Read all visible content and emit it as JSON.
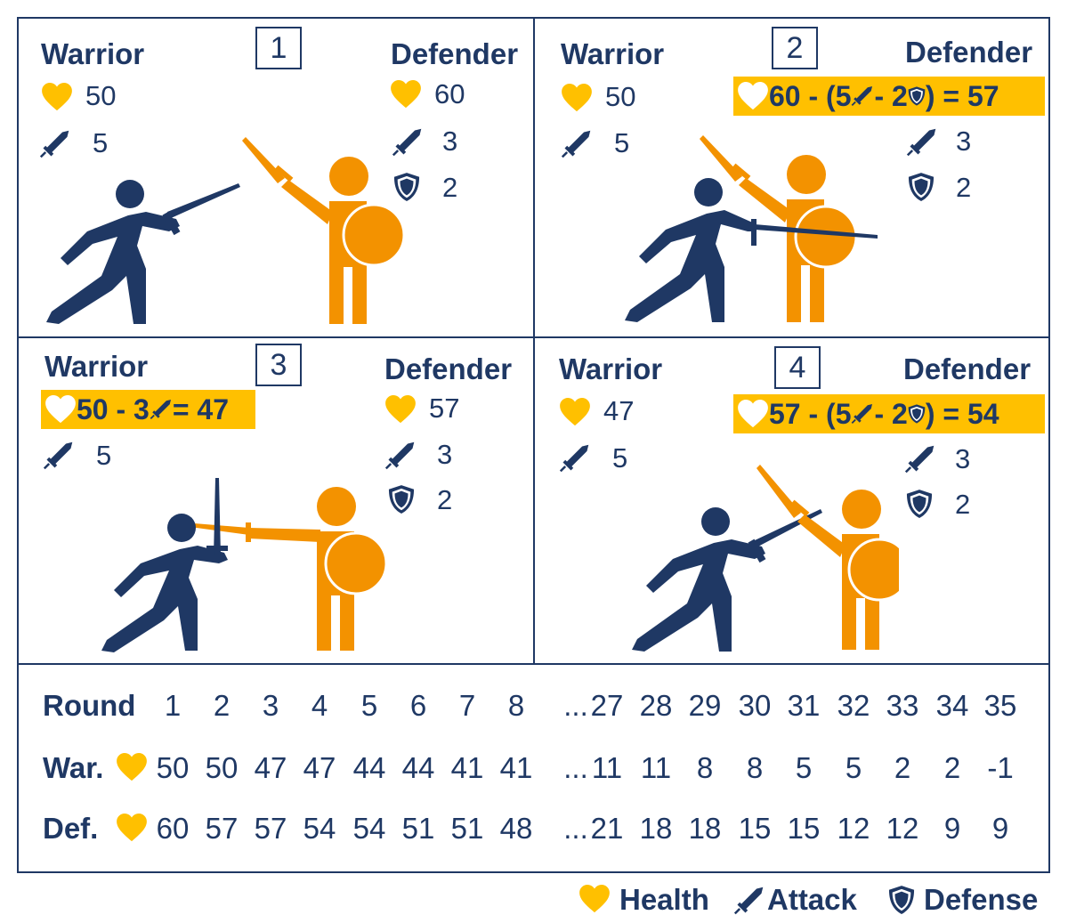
{
  "panels": [
    {
      "number": "1",
      "warrior": {
        "label": "Warrior",
        "health": "50",
        "attack": "5"
      },
      "defender": {
        "label": "Defender",
        "health": "60",
        "attack": "3",
        "defense": "2"
      }
    },
    {
      "number": "2",
      "warrior": {
        "label": "Warrior",
        "health": "50",
        "attack": "5"
      },
      "defender": {
        "label": "Defender",
        "attack": "3",
        "defense": "2",
        "health_formula": {
          "a": "60 - (5",
          "b": " - 2",
          "c": ") = 57"
        }
      }
    },
    {
      "number": "3",
      "warrior": {
        "label": "Warrior",
        "attack": "5",
        "health_formula": {
          "a": "50 - 3",
          "b": " = 47"
        }
      },
      "defender": {
        "label": "Defender",
        "health": "57",
        "attack": "3",
        "defense": "2"
      }
    },
    {
      "number": "4",
      "warrior": {
        "label": "Warrior",
        "health": "47",
        "attack": "5"
      },
      "defender": {
        "label": "Defender",
        "attack": "3",
        "defense": "2",
        "health_formula": {
          "a": "57 - (5",
          "b": " - 2",
          "c": ") = 54"
        }
      }
    }
  ],
  "table": {
    "round_label": "Round",
    "warrior_label": "War.",
    "defender_label": "Def.",
    "ellipsis": "...",
    "rounds": [
      "1",
      "2",
      "3",
      "4",
      "5",
      "6",
      "7",
      "8",
      "27",
      "28",
      "29",
      "30",
      "31",
      "32",
      "33",
      "34",
      "35"
    ],
    "warrior_health": [
      "50",
      "50",
      "47",
      "47",
      "44",
      "44",
      "41",
      "41",
      "11",
      "11",
      "8",
      "8",
      "5",
      "5",
      "2",
      "2",
      "-1"
    ],
    "defender_health": [
      "60",
      "57",
      "57",
      "54",
      "54",
      "51",
      "51",
      "48",
      "21",
      "18",
      "18",
      "15",
      "15",
      "12",
      "12",
      "9",
      "9"
    ]
  },
  "legend": {
    "health": "Health",
    "attack": "Attack",
    "defense": "Defense"
  },
  "colors": {
    "navy": "#1f3864",
    "orange": "#f39200",
    "gold": "#ffc000"
  },
  "icons": {
    "health": "heart-icon",
    "attack": "sword-icon",
    "defense": "shield-icon"
  }
}
